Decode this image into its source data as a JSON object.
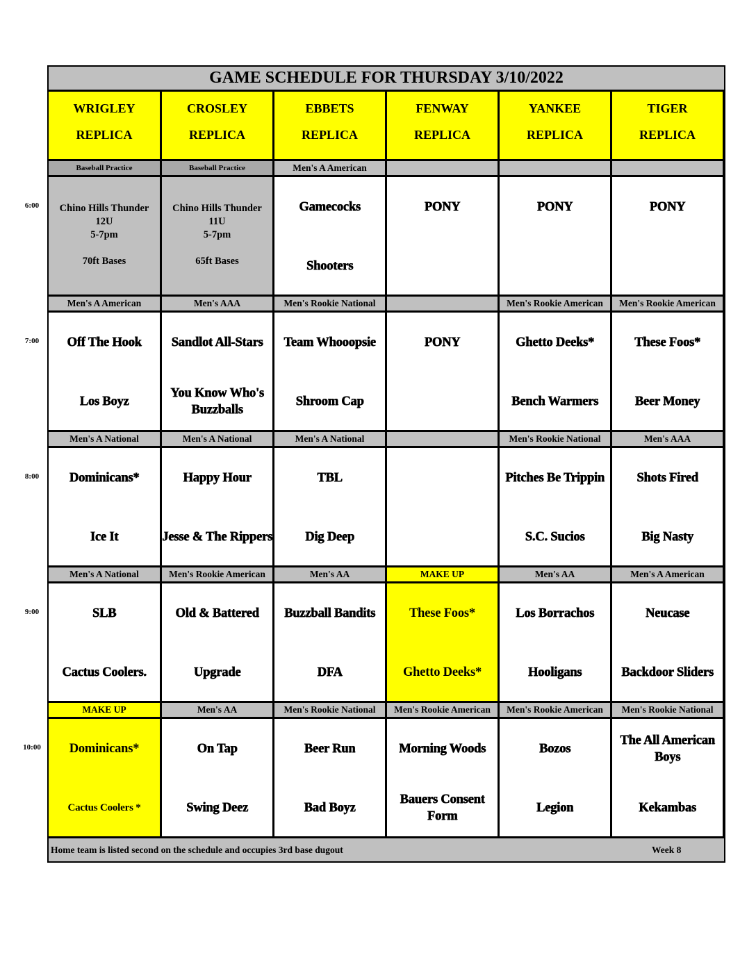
{
  "title": "GAME SCHEDULE FOR THURSDAY 3/10/2022",
  "fields": [
    {
      "name": "WRIGLEY",
      "sub": "REPLICA"
    },
    {
      "name": "CROSLEY",
      "sub": "REPLICA"
    },
    {
      "name": "EBBETS",
      "sub": "REPLICA"
    },
    {
      "name": "FENWAY",
      "sub": "REPLICA"
    },
    {
      "name": "YANKEE",
      "sub": "REPLICA"
    },
    {
      "name": "TIGER",
      "sub": "REPLICA"
    }
  ],
  "colors": {
    "header": "#ffff00",
    "label": "#c0c0c0",
    "makeup": "#ffff00",
    "practice": "#c0c0c0"
  },
  "slots": [
    {
      "time": "6:00",
      "cells": [
        {
          "division": "Baseball Practice",
          "label_style": "dark",
          "bg": "gray",
          "lines": [
            "Chino Hills Thunder",
            "12U",
            "5-7pm",
            "",
            "70ft Bases"
          ]
        },
        {
          "division": "Baseball Practice",
          "label_style": "dark",
          "bg": "gray",
          "lines": [
            "Chino Hills Thunder",
            "11U",
            "5-7pm",
            "",
            "65ft Bases"
          ]
        },
        {
          "division": "Men's A American",
          "teams": [
            "Gamecocks",
            "Shooters"
          ]
        },
        {
          "division": "",
          "teams": [
            "PONY",
            ""
          ]
        },
        {
          "division": "",
          "teams": [
            "PONY",
            ""
          ]
        },
        {
          "division": "",
          "teams": [
            "PONY",
            ""
          ]
        }
      ]
    },
    {
      "time": "7:00",
      "cells": [
        {
          "division": "Men's A American",
          "teams": [
            "Off The Hook",
            "Los Boyz"
          ]
        },
        {
          "division": "Men's AAA",
          "teams": [
            "Sandlot All-Stars",
            "You Know Who's Buzzballs"
          ]
        },
        {
          "division": "Men's Rookie National",
          "teams": [
            "Team Whooopsie",
            "Shroom Cap"
          ]
        },
        {
          "division": "",
          "teams": [
            "PONY",
            ""
          ]
        },
        {
          "division": "Men's Rookie American",
          "teams": [
            "Ghetto Deeks*",
            "Bench Warmers"
          ]
        },
        {
          "division": "Men's Rookie American",
          "teams": [
            "These Foos*",
            "Beer Money"
          ]
        }
      ]
    },
    {
      "time": "8:00",
      "cells": [
        {
          "division": "Men's A National",
          "teams": [
            "Dominicans*",
            "Ice It"
          ]
        },
        {
          "division": "Men's A National",
          "teams": [
            "Happy Hour",
            "Jesse & The Rippers"
          ]
        },
        {
          "division": "Men's A National",
          "teams": [
            "TBL",
            "Dig Deep"
          ]
        },
        {
          "division": "",
          "teams": [
            "",
            ""
          ]
        },
        {
          "division": "Men's Rookie National",
          "teams": [
            "Pitches Be Trippin",
            "S.C. Sucios"
          ]
        },
        {
          "division": "Men's AAA",
          "teams": [
            "Shots Fired",
            "Big Nasty"
          ]
        }
      ]
    },
    {
      "time": "9:00",
      "cells": [
        {
          "division": "Men's A National",
          "teams": [
            "SLB",
            "Cactus Coolers."
          ]
        },
        {
          "division": "Men's Rookie American",
          "teams": [
            "Old & Battered",
            "Upgrade"
          ]
        },
        {
          "division": "Men's AA",
          "teams": [
            "Buzzball Bandits",
            "DFA"
          ]
        },
        {
          "division": "MAKE UP",
          "label_style": "yellow",
          "bg": "yellow",
          "teams": [
            "These Foos*",
            "Ghetto Deeks*"
          ]
        },
        {
          "division": "Men's AA",
          "teams": [
            "Los Borrachos",
            "Hooligans"
          ]
        },
        {
          "division": "Men's A American",
          "teams": [
            "Neucase",
            "Backdoor Sliders"
          ]
        }
      ]
    },
    {
      "time": "10:00",
      "cells": [
        {
          "division": "MAKE UP",
          "label_style": "yellow",
          "bg": "yellow",
          "teams": [
            "Dominicans*",
            "Cactus Coolers *"
          ],
          "small_home": true
        },
        {
          "division": "Men's AA",
          "teams": [
            "On Tap",
            "Swing Deez"
          ]
        },
        {
          "division": "Men's Rookie National",
          "teams": [
            "Beer Run",
            "Bad Boyz"
          ]
        },
        {
          "division": "Men's Rookie American",
          "teams": [
            "Morning Woods",
            "Bauers Consent Form"
          ]
        },
        {
          "division": "Men's Rookie American",
          "teams": [
            "Bozos",
            "Legion"
          ]
        },
        {
          "division": "Men's Rookie National",
          "teams": [
            "The All American Boys",
            "Kekambas"
          ]
        }
      ]
    }
  ],
  "footer": {
    "note": "Home team is listed second on the schedule and occupies 3rd base dugout",
    "week": "Week 8"
  }
}
